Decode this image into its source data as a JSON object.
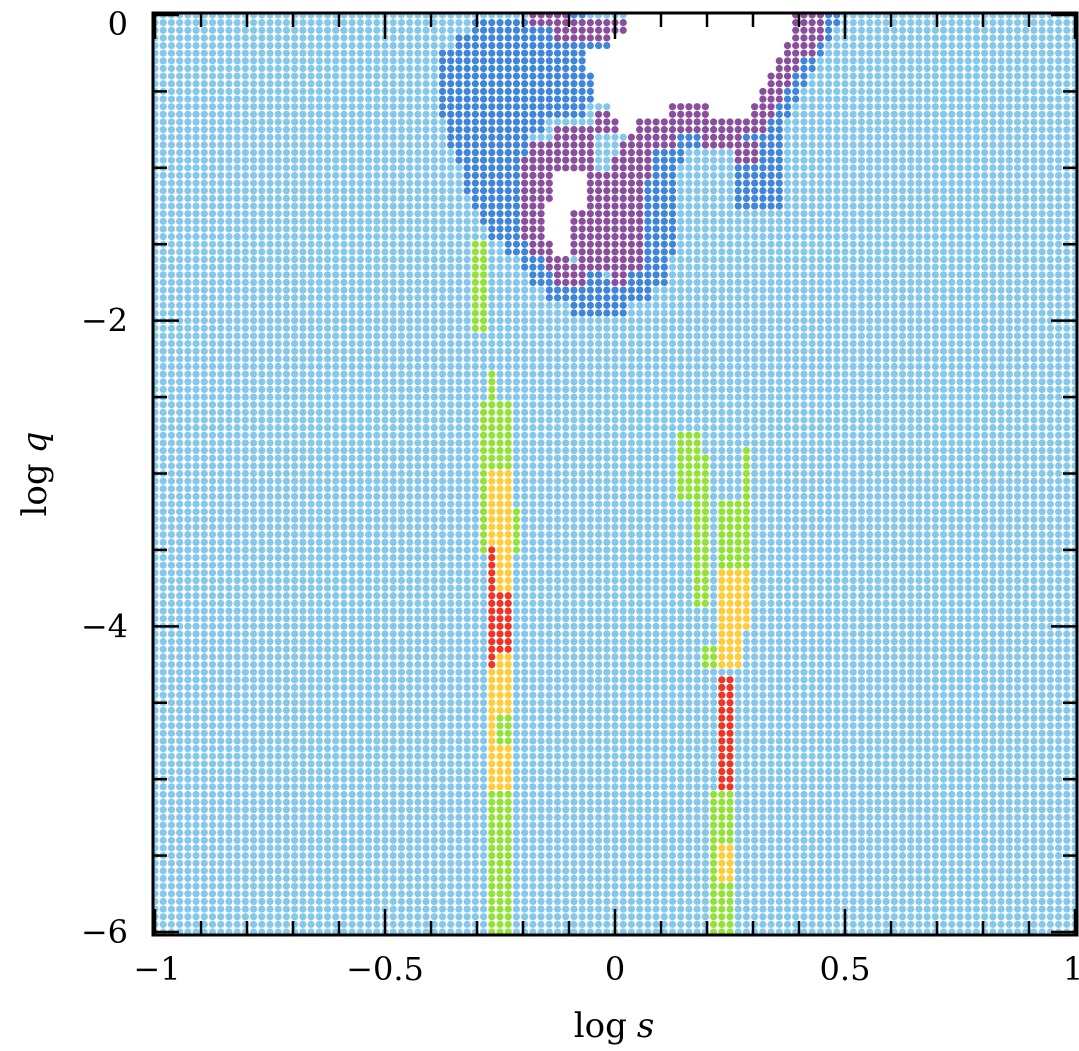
{
  "chart_data": {
    "type": "scatter",
    "title": "",
    "xlabel": "log",
    "xlabel_var": "s",
    "ylabel": "log",
    "ylabel_var": "q",
    "xlim": [
      -1,
      1
    ],
    "ylim": [
      -6,
      0
    ],
    "x_ticks": [
      -1,
      -0.5,
      0,
      0.5,
      1
    ],
    "x_tick_labels": [
      "−1",
      "−0.5",
      "0",
      "0.5",
      "1"
    ],
    "y_ticks": [
      -6,
      -4,
      -2,
      0
    ],
    "y_tick_labels": [
      "−6",
      "−4",
      "−2",
      "0"
    ],
    "grid": "dense regular lattice of points, spacing ~0.02 in log s and ~0.05 in log q",
    "background_category_color": "#86c8eb",
    "category_colors": {
      "background": "#86c8eb",
      "blue": "#3f85da",
      "purple": "#8a4f9c",
      "green": "#93e23a",
      "yellow": "#ffcc3c",
      "red": "#f03324",
      "empty": "#ffffff"
    },
    "regions": {
      "upper_hole": [
        {
          "log_q": 0.0,
          "s_from": 0.03,
          "s_to": 0.37
        },
        {
          "log_q": -0.1,
          "s_from": 0.04,
          "s_to": 0.37
        },
        {
          "log_q": -0.2,
          "s_from": 0.0,
          "s_to": 0.35
        },
        {
          "log_q": -0.3,
          "s_from": -0.06,
          "s_to": 0.34
        },
        {
          "log_q": -0.4,
          "s_from": -0.04,
          "s_to": 0.33
        },
        {
          "log_q": -0.5,
          "s_from": -0.03,
          "s_to": 0.3
        },
        {
          "log_q": -0.6,
          "s_from": 0.0,
          "s_to": 0.1
        },
        {
          "log_q": -0.6,
          "s_from": 0.22,
          "s_to": 0.28
        },
        {
          "log_q": -0.7,
          "s_from": 0.01,
          "s_to": 0.04
        },
        {
          "log_q": -1.1,
          "s_from": -0.12,
          "s_to": -0.07
        },
        {
          "log_q": -1.2,
          "s_from": -0.13,
          "s_to": -0.07
        },
        {
          "log_q": -1.3,
          "s_from": -0.14,
          "s_to": -0.1
        },
        {
          "log_q": -1.4,
          "s_from": -0.14,
          "s_to": -0.1
        },
        {
          "log_q": -1.5,
          "s_from": -0.13,
          "s_to": -0.1
        }
      ],
      "purple": [
        {
          "log_q": 0.0,
          "s_from": -0.18,
          "s_to": -0.1
        },
        {
          "log_q": 0.0,
          "s_from": 0.08,
          "s_to": 0.26
        },
        {
          "log_q": 0.0,
          "s_from": 0.38,
          "s_to": 0.45
        },
        {
          "log_q": -0.1,
          "s_from": -0.12,
          "s_to": 0.03
        },
        {
          "log_q": -0.1,
          "s_from": 0.38,
          "s_to": 0.44
        },
        {
          "log_q": -0.2,
          "s_from": 0.36,
          "s_to": 0.42
        },
        {
          "log_q": -0.3,
          "s_from": 0.35,
          "s_to": 0.4
        },
        {
          "log_q": -0.4,
          "s_from": 0.34,
          "s_to": 0.38
        },
        {
          "log_q": -0.5,
          "s_from": 0.13,
          "s_to": 0.15
        },
        {
          "log_q": -0.5,
          "s_from": 0.32,
          "s_to": 0.36
        },
        {
          "log_q": -0.6,
          "s_from": 0.11,
          "s_to": 0.21
        },
        {
          "log_q": -0.6,
          "s_from": 0.28,
          "s_to": 0.34
        },
        {
          "log_q": -0.7,
          "s_from": -0.03,
          "s_to": 0.0
        },
        {
          "log_q": -0.7,
          "s_from": 0.05,
          "s_to": 0.32
        },
        {
          "log_q": -0.8,
          "s_from": -0.12,
          "s_to": -0.05
        },
        {
          "log_q": -0.8,
          "s_from": 0.03,
          "s_to": 0.12
        },
        {
          "log_q": -0.8,
          "s_from": 0.2,
          "s_to": 0.26
        },
        {
          "log_q": -0.9,
          "s_from": -0.18,
          "s_to": -0.05
        },
        {
          "log_q": -0.9,
          "s_from": 0.02,
          "s_to": 0.08
        },
        {
          "log_q": -0.9,
          "s_from": 0.27,
          "s_to": 0.3
        },
        {
          "log_q": -1.0,
          "s_from": -0.2,
          "s_to": -0.05
        },
        {
          "log_q": -1.0,
          "s_from": 0.0,
          "s_to": 0.07
        },
        {
          "log_q": -1.1,
          "s_from": -0.2,
          "s_to": -0.12
        },
        {
          "log_q": -1.1,
          "s_from": -0.07,
          "s_to": 0.06
        },
        {
          "log_q": -1.2,
          "s_from": -0.2,
          "s_to": -0.13
        },
        {
          "log_q": -1.2,
          "s_from": -0.07,
          "s_to": 0.05
        },
        {
          "log_q": -1.3,
          "s_from": -0.2,
          "s_to": -0.14
        },
        {
          "log_q": -1.3,
          "s_from": -0.1,
          "s_to": 0.05
        },
        {
          "log_q": -1.4,
          "s_from": -0.19,
          "s_to": -0.14
        },
        {
          "log_q": -1.4,
          "s_from": -0.1,
          "s_to": 0.05
        },
        {
          "log_q": -1.5,
          "s_from": -0.18,
          "s_to": -0.13
        },
        {
          "log_q": -1.5,
          "s_from": -0.1,
          "s_to": 0.05
        },
        {
          "log_q": -1.6,
          "s_from": -0.14,
          "s_to": -0.1
        },
        {
          "log_q": -1.6,
          "s_from": -0.08,
          "s_to": 0.05
        },
        {
          "log_q": -1.7,
          "s_from": -0.12,
          "s_to": -0.08
        },
        {
          "log_q": -1.7,
          "s_from": 0.0,
          "s_to": 0.02
        }
      ],
      "blue": [
        {
          "log_q": 0.0,
          "s_from": -0.14,
          "s_to": -0.08
        },
        {
          "log_q": 0.0,
          "s_from": 0.44,
          "s_to": 0.48
        },
        {
          "log_q": -0.1,
          "s_from": -0.3,
          "s_to": -0.12
        },
        {
          "log_q": -0.1,
          "s_from": 0.43,
          "s_to": 0.47
        },
        {
          "log_q": -0.2,
          "s_from": -0.34,
          "s_to": 0.0
        },
        {
          "log_q": -0.2,
          "s_from": 0.41,
          "s_to": 0.45
        },
        {
          "log_q": -0.3,
          "s_from": -0.37,
          "s_to": -0.06
        },
        {
          "log_q": -0.3,
          "s_from": 0.39,
          "s_to": 0.43
        },
        {
          "log_q": -0.4,
          "s_from": -0.38,
          "s_to": -0.04
        },
        {
          "log_q": -0.4,
          "s_from": 0.37,
          "s_to": 0.41
        },
        {
          "log_q": -0.5,
          "s_from": -0.38,
          "s_to": -0.03
        },
        {
          "log_q": -0.5,
          "s_from": 0.36,
          "s_to": 0.39
        },
        {
          "log_q": -0.6,
          "s_from": -0.37,
          "s_to": -0.07
        },
        {
          "log_q": -0.6,
          "s_from": 0.34,
          "s_to": 0.37
        },
        {
          "log_q": -0.7,
          "s_from": -0.36,
          "s_to": -0.16
        },
        {
          "log_q": -0.7,
          "s_from": 0.32,
          "s_to": 0.36
        },
        {
          "log_q": -0.8,
          "s_from": -0.35,
          "s_to": -0.2
        },
        {
          "log_q": -0.8,
          "s_from": 0.12,
          "s_to": 0.2
        },
        {
          "log_q": -0.8,
          "s_from": 0.26,
          "s_to": 0.35
        },
        {
          "log_q": -0.9,
          "s_from": -0.34,
          "s_to": -0.2
        },
        {
          "log_q": -0.9,
          "s_from": 0.08,
          "s_to": 0.14
        },
        {
          "log_q": -0.9,
          "s_from": 0.3,
          "s_to": 0.35
        },
        {
          "log_q": -1.0,
          "s_from": -0.33,
          "s_to": -0.2
        },
        {
          "log_q": -1.0,
          "s_from": 0.07,
          "s_to": 0.13
        },
        {
          "log_q": -1.0,
          "s_from": 0.27,
          "s_to": 0.36
        },
        {
          "log_q": -1.1,
          "s_from": -0.32,
          "s_to": -0.21
        },
        {
          "log_q": -1.1,
          "s_from": 0.06,
          "s_to": 0.13
        },
        {
          "log_q": -1.1,
          "s_from": 0.27,
          "s_to": 0.36
        },
        {
          "log_q": -1.2,
          "s_from": -0.31,
          "s_to": -0.2
        },
        {
          "log_q": -1.2,
          "s_from": 0.05,
          "s_to": 0.13
        },
        {
          "log_q": -1.2,
          "s_from": 0.27,
          "s_to": 0.35
        },
        {
          "log_q": -1.3,
          "s_from": -0.28,
          "s_to": -0.2
        },
        {
          "log_q": -1.3,
          "s_from": 0.05,
          "s_to": 0.13
        },
        {
          "log_q": -1.4,
          "s_from": -0.26,
          "s_to": -0.19
        },
        {
          "log_q": -1.4,
          "s_from": 0.05,
          "s_to": 0.12
        },
        {
          "log_q": -1.5,
          "s_from": -0.24,
          "s_to": -0.18
        },
        {
          "log_q": -1.5,
          "s_from": 0.05,
          "s_to": 0.12
        },
        {
          "log_q": -1.6,
          "s_from": -0.2,
          "s_to": -0.14
        },
        {
          "log_q": -1.6,
          "s_from": 0.05,
          "s_to": 0.11
        },
        {
          "log_q": -1.7,
          "s_from": -0.17,
          "s_to": -0.12
        },
        {
          "log_q": -1.7,
          "s_from": -0.07,
          "s_to": -0.04
        },
        {
          "log_q": -1.7,
          "s_from": 0.02,
          "s_to": 0.1
        },
        {
          "log_q": -1.8,
          "s_from": -0.14,
          "s_to": -0.06
        },
        {
          "log_q": -1.8,
          "s_from": -0.03,
          "s_to": 0.08
        },
        {
          "log_q": -1.9,
          "s_from": -0.09,
          "s_to": -0.04
        },
        {
          "log_q": -1.9,
          "s_from": -0.02,
          "s_to": 0.02
        }
      ],
      "left_column": [
        {
          "q_top": -1.5,
          "q_bottom": -2.05,
          "s_from": -0.31,
          "s_to": -0.28,
          "color": "green"
        },
        {
          "q_top": -2.35,
          "q_bottom": -2.55,
          "s_from": -0.27,
          "s_to": -0.26,
          "color": "green"
        },
        {
          "q_top": -2.55,
          "q_bottom": -3.25,
          "s_from": -0.29,
          "s_to": -0.24,
          "color": "green"
        },
        {
          "q_top": -3.25,
          "q_bottom": -3.5,
          "s_from": -0.29,
          "s_to": -0.22,
          "color": "green"
        },
        {
          "q_top": -3.0,
          "q_bottom": -3.55,
          "s_from": -0.27,
          "s_to": -0.24,
          "color": "yellow"
        },
        {
          "q_top": -3.55,
          "q_bottom": -4.3,
          "s_from": -0.27,
          "s_to": -0.23,
          "color": "yellow"
        },
        {
          "q_top": -3.5,
          "q_bottom": -4.25,
          "s_from": -0.27,
          "s_to": -0.26,
          "color": "red"
        },
        {
          "q_top": -3.8,
          "q_bottom": -4.15,
          "s_from": -0.26,
          "s_to": -0.24,
          "color": "red"
        },
        {
          "q_top": -4.3,
          "q_bottom": -5.1,
          "s_from": -0.27,
          "s_to": -0.23,
          "color": "yellow"
        },
        {
          "q_top": -4.6,
          "q_bottom": -4.75,
          "s_from": -0.25,
          "s_to": -0.23,
          "color": "green"
        },
        {
          "q_top": -5.1,
          "q_bottom": -6.0,
          "s_from": -0.27,
          "s_to": -0.23,
          "color": "green"
        }
      ],
      "right_column": [
        {
          "q_top": -2.75,
          "q_bottom": -3.15,
          "s_from": 0.14,
          "s_to": 0.18,
          "color": "green"
        },
        {
          "q_top": -2.9,
          "q_bottom": -3.85,
          "s_from": 0.17,
          "s_to": 0.19,
          "color": "green"
        },
        {
          "q_top": -2.85,
          "q_bottom": -3.3,
          "s_from": 0.28,
          "s_to": 0.29,
          "color": "green"
        },
        {
          "q_top": -3.2,
          "q_bottom": -3.65,
          "s_from": 0.24,
          "s_to": 0.28,
          "color": "green"
        },
        {
          "q_top": -3.65,
          "q_bottom": -4.0,
          "s_from": 0.24,
          "s_to": 0.28,
          "color": "yellow"
        },
        {
          "q_top": -4.0,
          "q_bottom": -4.25,
          "s_from": 0.24,
          "s_to": 0.27,
          "color": "yellow"
        },
        {
          "q_top": -4.15,
          "q_bottom": -4.25,
          "s_from": 0.2,
          "s_to": 0.21,
          "color": "green"
        },
        {
          "q_top": -4.35,
          "q_bottom": -5.35,
          "s_from": 0.24,
          "s_to": 0.25,
          "color": "red"
        },
        {
          "q_top": -5.1,
          "q_bottom": -6.0,
          "s_from": 0.22,
          "s_to": 0.25,
          "color": "green"
        },
        {
          "q_top": -5.45,
          "q_bottom": -5.65,
          "s_from": 0.24,
          "s_to": 0.25,
          "color": "yellow"
        }
      ]
    }
  }
}
